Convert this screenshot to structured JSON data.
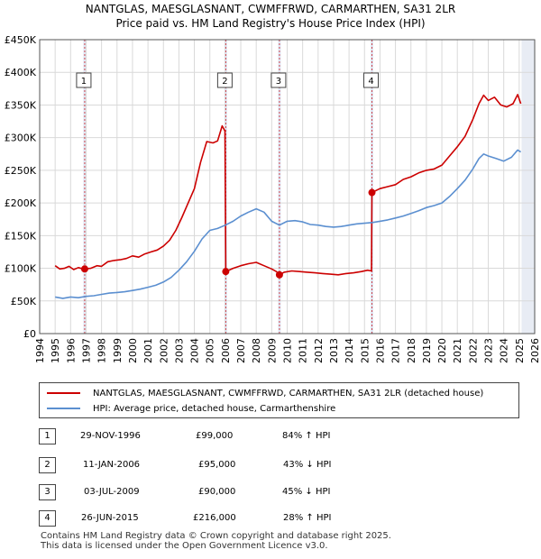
{
  "title_line1": "NANTGLAS, MAESGLASNANT, CWMFFRWD, CARMARTHEN, SA31 2LR",
  "title_line2": "Price paid vs. HM Land Registry's House Price Index (HPI)",
  "chart_data": {
    "type": "line",
    "title": "Price paid vs. HM Land Registry's House Price Index (HPI)",
    "xlabel": "",
    "ylabel": "",
    "xlim": [
      1994,
      2026
    ],
    "ylim": [
      0,
      450000
    ],
    "grid": true,
    "x_ticks": [
      "1994",
      "1995",
      "1996",
      "1997",
      "1998",
      "1999",
      "2000",
      "2001",
      "2002",
      "2003",
      "2004",
      "2005",
      "2006",
      "2007",
      "2008",
      "2009",
      "2010",
      "2011",
      "2012",
      "2013",
      "2014",
      "2015",
      "2016",
      "2017",
      "2018",
      "2019",
      "2020",
      "2021",
      "2022",
      "2023",
      "2024",
      "2025",
      "2026"
    ],
    "y_ticks": [
      0,
      50000,
      100000,
      150000,
      200000,
      250000,
      300000,
      350000,
      400000,
      450000
    ],
    "y_tick_labels": [
      "£0",
      "£50K",
      "£100K",
      "£150K",
      "£200K",
      "£250K",
      "£300K",
      "£350K",
      "£400K",
      "£450K"
    ],
    "series": [
      {
        "name": "NANTGLAS, MAESGLASNANT, CWMFFRWD, CARMARTHEN, SA31 2LR (detached house)",
        "color": "#cc0000",
        "points": [
          [
            1995.0,
            104000
          ],
          [
            1995.3,
            99000
          ],
          [
            1995.6,
            100000
          ],
          [
            1995.9,
            103000
          ],
          [
            1996.2,
            98000
          ],
          [
            1996.5,
            101000
          ],
          [
            1996.8,
            99000
          ],
          [
            1996.91,
            99000
          ],
          [
            1997.3,
            100000
          ],
          [
            1997.7,
            104000
          ],
          [
            1998.0,
            103000
          ],
          [
            1998.4,
            110000
          ],
          [
            1998.8,
            112000
          ],
          [
            1999.2,
            113000
          ],
          [
            1999.6,
            115000
          ],
          [
            2000.0,
            119000
          ],
          [
            2000.4,
            117000
          ],
          [
            2000.8,
            122000
          ],
          [
            2001.2,
            125000
          ],
          [
            2001.6,
            128000
          ],
          [
            2002.0,
            134000
          ],
          [
            2002.4,
            143000
          ],
          [
            2002.8,
            158000
          ],
          [
            2003.2,
            178000
          ],
          [
            2003.6,
            200000
          ],
          [
            2004.0,
            222000
          ],
          [
            2004.4,
            262000
          ],
          [
            2004.8,
            294000
          ],
          [
            2005.2,
            292000
          ],
          [
            2005.5,
            295000
          ],
          [
            2005.8,
            318000
          ],
          [
            2005.98,
            310000
          ],
          [
            2006.03,
            95000
          ],
          [
            2006.5,
            100000
          ],
          [
            2007.0,
            104000
          ],
          [
            2007.5,
            107000
          ],
          [
            2008.0,
            109000
          ],
          [
            2008.5,
            104000
          ],
          [
            2009.0,
            99000
          ],
          [
            2009.3,
            95000
          ],
          [
            2009.5,
            90000
          ],
          [
            2009.8,
            94000
          ],
          [
            2010.3,
            96000
          ],
          [
            2010.8,
            95000
          ],
          [
            2011.3,
            94000
          ],
          [
            2011.8,
            93000
          ],
          [
            2012.3,
            92000
          ],
          [
            2012.8,
            91000
          ],
          [
            2013.3,
            90000
          ],
          [
            2013.8,
            92000
          ],
          [
            2014.3,
            93000
          ],
          [
            2014.8,
            95000
          ],
          [
            2015.2,
            97000
          ],
          [
            2015.45,
            96000
          ],
          [
            2015.48,
            216000
          ],
          [
            2016.0,
            222000
          ],
          [
            2016.5,
            225000
          ],
          [
            2017.0,
            228000
          ],
          [
            2017.5,
            236000
          ],
          [
            2018.0,
            240000
          ],
          [
            2018.5,
            246000
          ],
          [
            2019.0,
            250000
          ],
          [
            2019.5,
            252000
          ],
          [
            2020.0,
            258000
          ],
          [
            2020.5,
            272000
          ],
          [
            2021.0,
            286000
          ],
          [
            2021.5,
            302000
          ],
          [
            2022.0,
            328000
          ],
          [
            2022.4,
            352000
          ],
          [
            2022.7,
            365000
          ],
          [
            2023.0,
            357000
          ],
          [
            2023.4,
            362000
          ],
          [
            2023.8,
            350000
          ],
          [
            2024.2,
            347000
          ],
          [
            2024.6,
            352000
          ],
          [
            2024.9,
            366000
          ],
          [
            2025.1,
            352000
          ]
        ]
      },
      {
        "name": "HPI: Average price, detached house, Carmarthenshire",
        "color": "#5b8fd0",
        "points": [
          [
            1995.0,
            56000
          ],
          [
            1995.5,
            54000
          ],
          [
            1996.0,
            56000
          ],
          [
            1996.5,
            55000
          ],
          [
            1997.0,
            57000
          ],
          [
            1997.5,
            58000
          ],
          [
            1998.0,
            60000
          ],
          [
            1998.5,
            62000
          ],
          [
            1999.0,
            63000
          ],
          [
            1999.5,
            64000
          ],
          [
            2000.0,
            66000
          ],
          [
            2000.5,
            68000
          ],
          [
            2001.0,
            71000
          ],
          [
            2001.5,
            74000
          ],
          [
            2002.0,
            79000
          ],
          [
            2002.5,
            86000
          ],
          [
            2003.0,
            97000
          ],
          [
            2003.5,
            110000
          ],
          [
            2004.0,
            126000
          ],
          [
            2004.5,
            145000
          ],
          [
            2005.0,
            158000
          ],
          [
            2005.5,
            161000
          ],
          [
            2006.0,
            166000
          ],
          [
            2006.5,
            172000
          ],
          [
            2007.0,
            180000
          ],
          [
            2007.5,
            186000
          ],
          [
            2008.0,
            191000
          ],
          [
            2008.5,
            186000
          ],
          [
            2009.0,
            172000
          ],
          [
            2009.5,
            166000
          ],
          [
            2010.0,
            172000
          ],
          [
            2010.5,
            173000
          ],
          [
            2011.0,
            171000
          ],
          [
            2011.5,
            167000
          ],
          [
            2012.0,
            166000
          ],
          [
            2012.5,
            164000
          ],
          [
            2013.0,
            163000
          ],
          [
            2013.5,
            164000
          ],
          [
            2014.0,
            166000
          ],
          [
            2014.5,
            168000
          ],
          [
            2015.0,
            169000
          ],
          [
            2015.5,
            170000
          ],
          [
            2016.0,
            172000
          ],
          [
            2016.5,
            174000
          ],
          [
            2017.0,
            177000
          ],
          [
            2017.5,
            180000
          ],
          [
            2018.0,
            184000
          ],
          [
            2018.5,
            188000
          ],
          [
            2019.0,
            193000
          ],
          [
            2019.5,
            196000
          ],
          [
            2020.0,
            200000
          ],
          [
            2020.5,
            210000
          ],
          [
            2021.0,
            222000
          ],
          [
            2021.5,
            235000
          ],
          [
            2022.0,
            252000
          ],
          [
            2022.4,
            268000
          ],
          [
            2022.7,
            275000
          ],
          [
            2023.0,
            272000
          ],
          [
            2023.5,
            268000
          ],
          [
            2024.0,
            264000
          ],
          [
            2024.5,
            270000
          ],
          [
            2024.9,
            281000
          ],
          [
            2025.1,
            278000
          ]
        ]
      }
    ],
    "sales": [
      {
        "label": "1",
        "x": 1996.91,
        "y": 99000
      },
      {
        "label": "2",
        "x": 2006.03,
        "y": 95000
      },
      {
        "label": "3",
        "x": 2009.5,
        "y": 90000
      },
      {
        "label": "4",
        "x": 2015.48,
        "y": 216000
      }
    ]
  },
  "legend": {
    "property_label": "NANTGLAS, MAESGLASNANT, CWMFFRWD, CARMARTHEN, SA31 2LR (detached house)",
    "hpi_label": "HPI: Average price, detached house, Carmarthenshire"
  },
  "transactions": [
    {
      "num": "1",
      "date": "29-NOV-1996",
      "price": "£99,000",
      "hpi": "84% ↑ HPI"
    },
    {
      "num": "2",
      "date": "11-JAN-2006",
      "price": "£95,000",
      "hpi": "43% ↓ HPI"
    },
    {
      "num": "3",
      "date": "03-JUL-2009",
      "price": "£90,000",
      "hpi": "45% ↓ HPI"
    },
    {
      "num": "4",
      "date": "26-JUN-2015",
      "price": "£216,000",
      "hpi": "28% ↑ HPI"
    }
  ],
  "footer_line1": "Contains HM Land Registry data © Crown copyright and database right 2025.",
  "footer_line2": "This data is licensed under the Open Government Licence v3.0."
}
